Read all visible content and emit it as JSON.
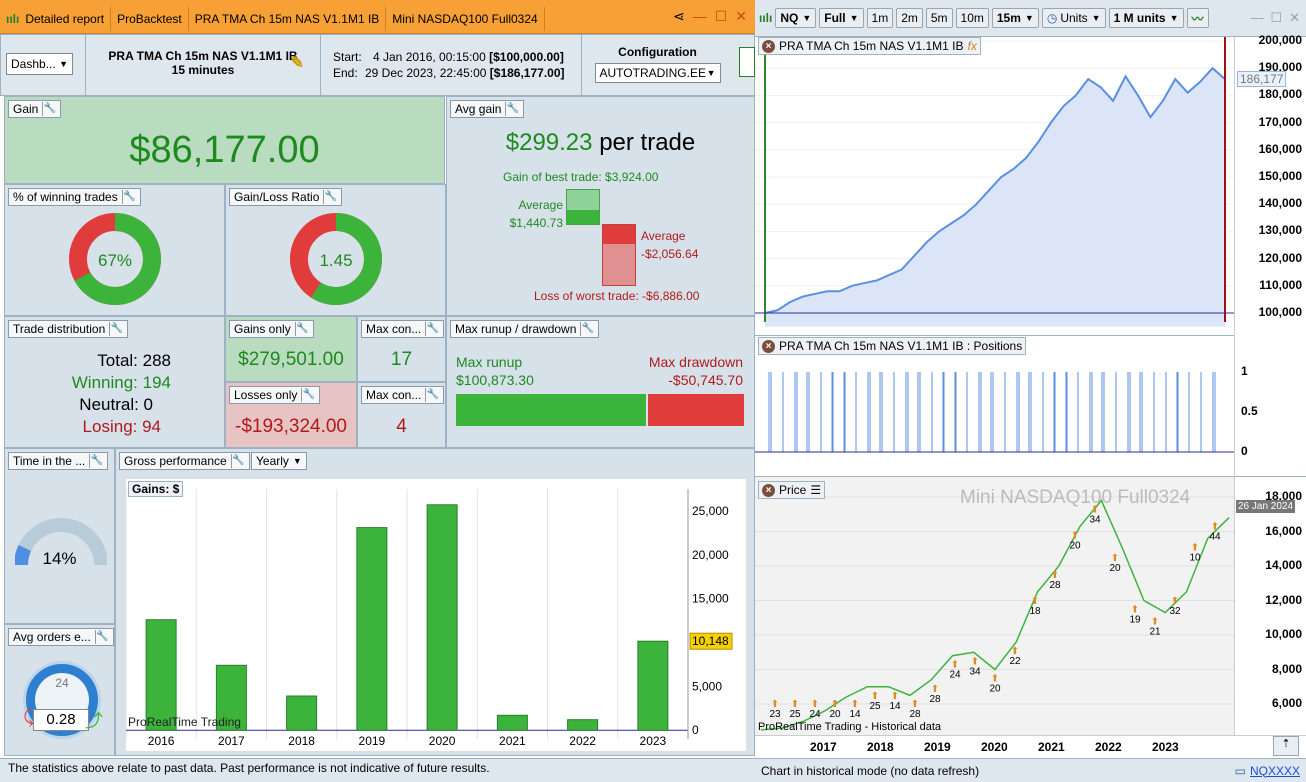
{
  "left_tabs": [
    "Detailed report",
    "ProBacktest",
    "PRA TMA Ch 15m NAS V1.1M1 IB",
    "Mini NASDAQ100 Full0324"
  ],
  "header": {
    "view_select": "Dashb...",
    "system_name": "PRA TMA Ch 15m NAS V1.1M1 IB",
    "timeframe": "15 minutes",
    "start_label": "Start:",
    "start_value": "4 Jan 2016, 00:15:00",
    "start_capital": "[$100,000.00]",
    "end_label": "End:",
    "end_value": "29 Dec 2023, 22:45:00",
    "end_capital": "[$186,177.00]",
    "config_label": "Configuration",
    "config_value": "AUTOTRADING.EE"
  },
  "gain": {
    "title": "Gain",
    "value": "$86,177.00"
  },
  "avg_gain": {
    "title": "Avg gain",
    "value": "$299.23",
    "unit": "per trade",
    "best": "Gain of best trade: $3,924.00",
    "avg_win_label": "Average",
    "avg_win": "$1,440.73",
    "avg_loss_label": "Average",
    "avg_loss": "-$2,056.64",
    "worst": "Loss of worst trade: -$6,886.00"
  },
  "winning": {
    "title": "% of winning trades",
    "value": "67%",
    "pct": 0.67
  },
  "ratio": {
    "title": "Gain/Loss Ratio",
    "value": "1.45",
    "fraction": 0.59
  },
  "distribution": {
    "title": "Trade distribution",
    "total": "Total: 288",
    "winning": "Winning: 194",
    "neutral": "Neutral: 0",
    "losing": "Losing: 94"
  },
  "gains_only": {
    "title": "Gains only",
    "value": "$279,501.00"
  },
  "losses_only": {
    "title": "Losses only",
    "value": "-$193,324.00"
  },
  "max_con_win": {
    "title": "Max con...",
    "value": "17"
  },
  "max_con_loss": {
    "title": "Max con...",
    "value": "4"
  },
  "runup": {
    "title": "Max runup / drawdown",
    "runup_label": "Max runup",
    "runup_value": "$100,873.30",
    "dd_label": "Max drawdown",
    "dd_value": "-$50,745.70"
  },
  "time_in": {
    "title": "Time in the ...",
    "value": "14%",
    "pct": 0.14
  },
  "avg_orders": {
    "title": "Avg orders e...",
    "value": "0.28",
    "dial": "24"
  },
  "gross": {
    "title": "Gross performance",
    "period": "Yearly",
    "chart_label": "Gains: $",
    "watermark": "ProRealTime Trading",
    "last_value": "10,148"
  },
  "chart_data": {
    "type": "bar",
    "categories": [
      "2016",
      "2017",
      "2018",
      "2019",
      "2020",
      "2021",
      "2022",
      "2023"
    ],
    "values": [
      12600,
      7400,
      3900,
      23100,
      25700,
      1700,
      1200,
      10148
    ],
    "ylim": [
      -1000,
      27500
    ],
    "yticks": [
      0,
      5000,
      10000,
      15000,
      20000,
      25000
    ],
    "ytick_labels": [
      "0",
      "5,000",
      "10,000",
      "15,000",
      "20,000",
      "25,000"
    ]
  },
  "footer_left": "The statistics above relate to past data. Past performance is not indicative of future results.",
  "right_toolbar": {
    "symbol": "NQ",
    "mode": "Full",
    "tf": [
      "1m",
      "2m",
      "5m",
      "10m"
    ],
    "tf_sel": "15m",
    "units": "Units",
    "units_sel": "1 M units"
  },
  "equity": {
    "title": "PRA TMA Ch 15m NAS V1.1M1 IB",
    "yticks": [
      "200,000",
      "190,000",
      "180,000",
      "170,000",
      "160,000",
      "150,000",
      "140,000",
      "130,000",
      "120,000",
      "110,000",
      "100,000"
    ],
    "last": "186,177"
  },
  "positions": {
    "title": "PRA TMA Ch 15m NAS V1.1M1 IB : Positions",
    "yticks": [
      "1",
      "0.5",
      "0"
    ]
  },
  "price": {
    "title": "Price",
    "watermark": "Mini NASDAQ100 Full0324",
    "date_tag": "26 Jan 2024",
    "yticks": [
      "18,000",
      "16,000",
      "14,000",
      "12,000",
      "10,000",
      "8,000",
      "6,000"
    ],
    "credit": "ProRealTime Trading - Historical data",
    "trade_labels": [
      "44",
      "10",
      "32",
      "21",
      "19",
      "20",
      "34",
      "20",
      "28",
      "18",
      "22",
      "20",
      "34",
      "24",
      "28",
      "28",
      "14",
      "25",
      "14",
      "20",
      "24",
      "25",
      "23"
    ],
    "xticks": [
      "2017",
      "2018",
      "2019",
      "2020",
      "2021",
      "2022",
      "2023"
    ]
  },
  "footer_right": "Chart in historical mode (no data refresh)",
  "footer_link": "NQXXXX"
}
